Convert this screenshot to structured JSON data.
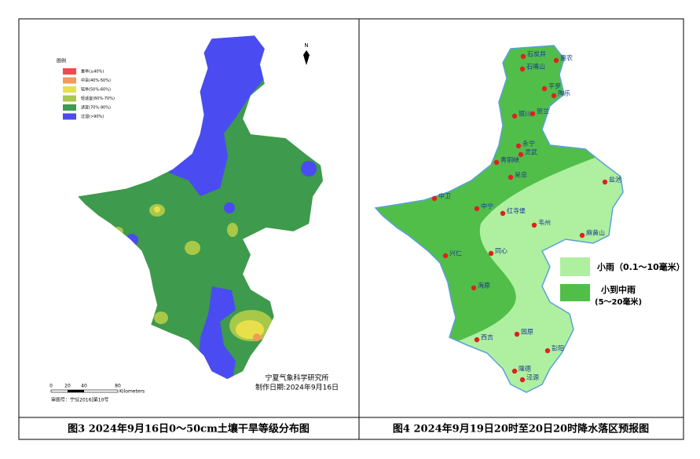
{
  "left_map": {
    "legend_title": "图例",
    "legend": [
      {
        "name": "重旱(≤40%)",
        "color": "#f04a4a"
      },
      {
        "name": "中旱(40%-50%)",
        "color": "#f59a5a"
      },
      {
        "name": "轻旱(50%-60%)",
        "color": "#e8e04a"
      },
      {
        "name": "轻适宜(60%-70%)",
        "color": "#a8c84a"
      },
      {
        "name": "适宜(70%-90%)",
        "color": "#3e9a4c"
      },
      {
        "name": "过湿(>90%)",
        "color": "#4a4cf2"
      }
    ],
    "north": "N",
    "institute": "宁夏气象科学研究所",
    "date": "制作日期:2024年9月16日",
    "scale_labels": [
      "0",
      "20",
      "40",
      "80"
    ],
    "scale_unit": "Kilometers",
    "approval": "审图号：宁S[2016]第10号"
  },
  "right_map": {
    "legend": [
      {
        "name": "小雨（0.1～10毫米）",
        "color": "#aef0a0"
      },
      {
        "name": "小到中雨",
        "note": "(5～20毫米)",
        "color": "#52be4a"
      }
    ],
    "cities": [
      "石炭井",
      "惠农",
      "石嘴山",
      "平罗",
      "陶乐",
      "银川",
      "贺兰",
      "永宁",
      "灵武",
      "青铜峡",
      "吴忠",
      "盐池",
      "中卫",
      "中宁",
      "红寺堡",
      "韦州",
      "麻黄山",
      "兴仁",
      "同心",
      "海原",
      "固原",
      "西吉",
      "彭阳",
      "隆德",
      "泾源"
    ]
  },
  "captions": [
    "图3 2024年9月16日0～50cm土壤干旱等级分布图",
    "图4 2024年9月19日20时至20日20时降水落区预报图"
  ]
}
